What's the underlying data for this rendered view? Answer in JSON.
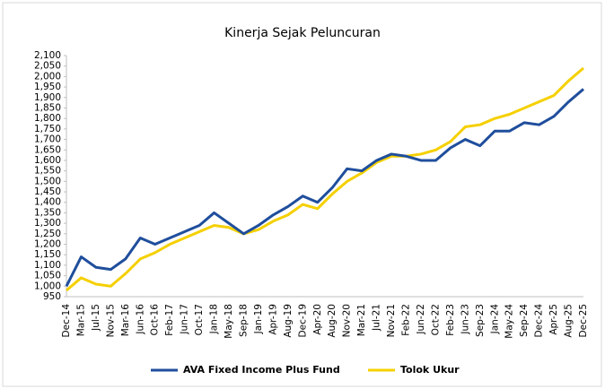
{
  "chart_data": {
    "type": "line",
    "title": "Kinerja Sejak Peluncuran",
    "categories": [
      "Dec-14",
      "Mar-15",
      "Jul-15",
      "Nov-15",
      "Mar-16",
      "Jun-16",
      "Oct-16",
      "Feb-17",
      "Jun-17",
      "Oct-17",
      "Jan-18",
      "May-18",
      "Sep-18",
      "Jan-19",
      "Apr-19",
      "Aug-19",
      "Dec-19",
      "Apr-20",
      "Aug-20",
      "Nov-20",
      "Mar-21",
      "Jul-21",
      "Nov-21",
      "Feb-22",
      "Jun-22",
      "Oct-22",
      "Feb-23",
      "Jun-23",
      "Sep-23",
      "Jan-24",
      "May-24",
      "Sep-24",
      "Dec-24",
      "Apr-25",
      "Aug-25",
      "Dec-25"
    ],
    "series": [
      {
        "name": "AVA Fixed Income Plus Fund",
        "color": "#1f4e9c",
        "values": [
          1000,
          1140,
          1090,
          1080,
          1130,
          1230,
          1200,
          1230,
          1260,
          1290,
          1350,
          1300,
          1250,
          1290,
          1340,
          1380,
          1430,
          1400,
          1470,
          1560,
          1550,
          1600,
          1630,
          1620,
          1600,
          1600,
          1660,
          1700,
          1670,
          1740,
          1740,
          1780,
          1770,
          1810,
          1880,
          1940
        ]
      },
      {
        "name": "Tolok Ukur",
        "color": "#f5d000",
        "values": [
          980,
          1040,
          1010,
          1000,
          1060,
          1130,
          1160,
          1200,
          1230,
          1260,
          1290,
          1280,
          1250,
          1270,
          1310,
          1340,
          1390,
          1370,
          1440,
          1500,
          1540,
          1590,
          1620,
          1620,
          1630,
          1650,
          1690,
          1760,
          1770,
          1800,
          1820,
          1850,
          1880,
          1910,
          1980,
          2040
        ]
      }
    ],
    "ylim": [
      950,
      2100
    ],
    "yticks": [
      950,
      {
        "value": 1000,
        "label": "1,000"
      },
      {
        "value": 1050,
        "label": "1,050"
      },
      {
        "value": 1100,
        "label": "1,100"
      },
      {
        "value": 1150,
        "label": "1,150"
      },
      {
        "value": 1200,
        "label": "1,200"
      },
      {
        "value": 1250,
        "label": "1,250"
      },
      {
        "value": 1300,
        "label": "1,300"
      },
      {
        "value": 1350,
        "label": "1,350"
      },
      {
        "value": 1400,
        "label": "1,400"
      },
      {
        "value": 1450,
        "label": "1,450"
      },
      {
        "value": 1500,
        "label": "1,500"
      },
      {
        "value": 1550,
        "label": "1,550"
      },
      {
        "value": 1600,
        "label": "1,600"
      },
      {
        "value": 1650,
        "label": "1,650"
      },
      {
        "value": 1700,
        "label": "1,700"
      },
      {
        "value": 1750,
        "label": "1,750"
      },
      {
        "value": 1800,
        "label": "1,800"
      },
      {
        "value": 1850,
        "label": "1,850"
      },
      {
        "value": 1900,
        "label": "1,900"
      },
      {
        "value": 1950,
        "label": "1,950"
      },
      {
        "value": 2000,
        "label": "2,000"
      },
      {
        "value": 2050,
        "label": "2,050"
      },
      {
        "value": 2100,
        "label": "2,100"
      }
    ],
    "grid": false
  }
}
